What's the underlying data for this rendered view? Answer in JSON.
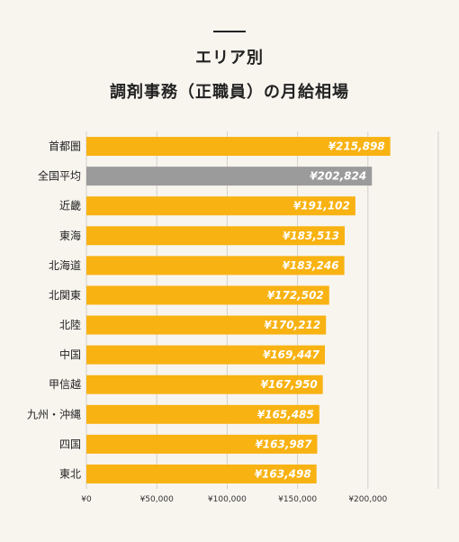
{
  "title_line1": "エリア別",
  "title_line2": "調剤事務（正職員）の月給相場",
  "colors": {
    "bar": "#f8b212",
    "highlight": "#9b9b9b",
    "grid": "#d2d0cb",
    "background": "#f8f5ef"
  },
  "chart_data": {
    "type": "bar",
    "orientation": "horizontal",
    "title": "エリア別 調剤事務（正職員）の月給相場",
    "categories": [
      "首都圏",
      "全国平均",
      "近畿",
      "東海",
      "北海道",
      "北関東",
      "北陸",
      "中国",
      "甲信越",
      "九州・沖縄",
      "四国",
      "東北"
    ],
    "values": [
      215898,
      202824,
      191102,
      183513,
      183246,
      172502,
      170212,
      169447,
      167950,
      165485,
      163987,
      163498
    ],
    "value_labels": [
      "¥215,898",
      "¥202,824",
      "¥191,102",
      "¥183,513",
      "¥183,246",
      "¥172,502",
      "¥170,212",
      "¥169,447",
      "¥167,950",
      "¥165,485",
      "¥163,987",
      "¥163,498"
    ],
    "highlight_category": "全国平均",
    "xlim": [
      0,
      250000
    ],
    "xticks": [
      0,
      50000,
      100000,
      150000,
      200000
    ],
    "xtick_labels": [
      "¥0",
      "¥50,000",
      "¥100,000",
      "¥150,000",
      "¥200,000"
    ],
    "grid": true,
    "legend": "none"
  }
}
